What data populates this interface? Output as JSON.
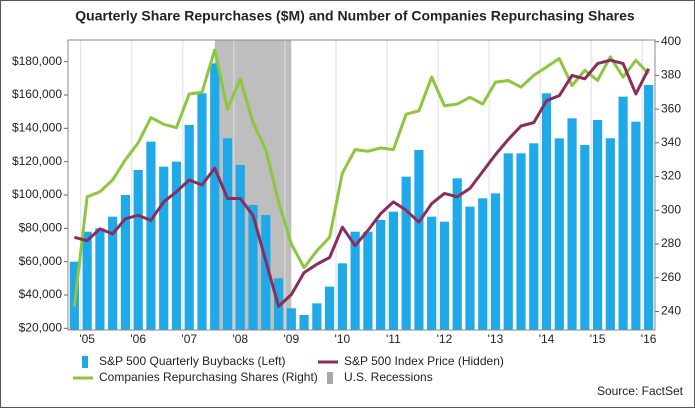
{
  "chart_data": {
    "type": "bar",
    "title": "Quarterly Share Repurchases ($M) and Number of Companies Repurchasing Shares",
    "categories": [
      null,
      "'05",
      null,
      null,
      null,
      "'06",
      null,
      null,
      null,
      "'07",
      null,
      null,
      null,
      "'08",
      null,
      null,
      null,
      "'09",
      null,
      null,
      null,
      "'10",
      null,
      null,
      null,
      "'11",
      null,
      null,
      null,
      "'12",
      null,
      null,
      null,
      "'13",
      null,
      null,
      null,
      "'14",
      null,
      null,
      null,
      "'15",
      null,
      null,
      null,
      "'16"
    ],
    "series": [
      {
        "name": "S&P 500 Quarterly Buybacks (Left)",
        "type": "bar",
        "color": "#1fa9e8",
        "values": [
          60000,
          78000,
          80000,
          87000,
          100000,
          115000,
          132000,
          117000,
          120000,
          142000,
          161000,
          179000,
          134000,
          118000,
          94000,
          88000,
          50000,
          32000,
          28000,
          35000,
          45000,
          59000,
          78000,
          78000,
          85000,
          90000,
          111000,
          127000,
          87000,
          84000,
          110000,
          93000,
          98000,
          101000,
          125000,
          125000,
          131000,
          161000,
          134000,
          146000,
          130000,
          145000,
          134000,
          159000,
          144000,
          166000
        ]
      },
      {
        "name": "Companies Repurchasing Shares (Right)",
        "type": "line",
        "axis": "y2",
        "color": "#8dc63f",
        "values": [
          243,
          308,
          311,
          318,
          330,
          340,
          355,
          351,
          349,
          369,
          370,
          395,
          360,
          378,
          352,
          336,
          305,
          280,
          266,
          276,
          284,
          322,
          336,
          335,
          337,
          336,
          357,
          359,
          379,
          362,
          363,
          367,
          363,
          376,
          377,
          373,
          380,
          385,
          390,
          374,
          383,
          377,
          391,
          379,
          389,
          381
        ]
      },
      {
        "name": "S&P 500 Index Price (Hidden)",
        "type": "line",
        "axis": "y2",
        "color": "#8b2d5c",
        "values": [
          284,
          282,
          289,
          286,
          295,
          297,
          294,
          305,
          311,
          318,
          315,
          325,
          307,
          307,
          297,
          270,
          243,
          250,
          263,
          268,
          272,
          290,
          279,
          288,
          298,
          305,
          300,
          293,
          304,
          310,
          308,
          313,
          323,
          333,
          342,
          350,
          352,
          365,
          368,
          380,
          378,
          387,
          389,
          387,
          369,
          384
        ]
      }
    ],
    "recession": {
      "name": "U.S. Recessions",
      "color": "#a8a8a8",
      "from_index": 12,
      "to_index": 17
    },
    "ylim": [
      19000,
      193000
    ],
    "yticks": [
      {
        "value": 20000,
        "label": "$20,000"
      },
      {
        "value": 40000,
        "label": "$40,000"
      },
      {
        "value": 60000,
        "label": "$60,000"
      },
      {
        "value": 80000,
        "label": "$80,000"
      },
      {
        "value": 100000,
        "label": "$100,000"
      },
      {
        "value": 120000,
        "label": "$120,000"
      },
      {
        "value": 140000,
        "label": "$140,000"
      },
      {
        "value": 160000,
        "label": "$160,000"
      },
      {
        "value": 180000,
        "label": "$180,000"
      }
    ],
    "y2lim": [
      229,
      401
    ],
    "y2ticks": [
      240,
      260,
      280,
      300,
      320,
      340,
      360,
      380,
      400
    ],
    "grid": "x",
    "source": "Source: FactSet"
  }
}
